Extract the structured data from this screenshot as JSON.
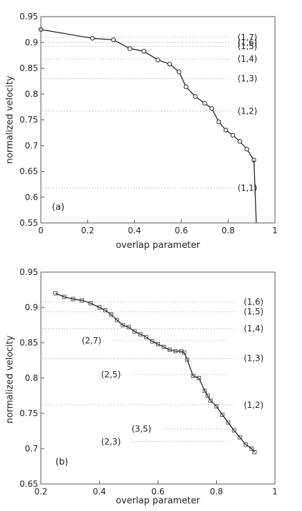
{
  "chart_data": [
    {
      "type": "line",
      "panel_label": "(a)",
      "xlabel": "overlap parameter",
      "ylabel": "normalized velocity",
      "xlim": [
        0,
        1
      ],
      "ylim": [
        0.55,
        0.95
      ],
      "xticks": [
        0,
        0.2,
        0.4,
        0.6,
        0.8,
        1
      ],
      "xtick_labels": [
        "0",
        "0.2",
        "0.4",
        "0.6",
        "0.8",
        "1"
      ],
      "yticks": [
        0.55,
        0.6,
        0.65,
        0.7,
        0.75,
        0.8,
        0.85,
        0.9,
        0.95
      ],
      "ytick_labels": [
        "0.55",
        "0.6",
        "0.65",
        "0.7",
        "0.75",
        "0.8",
        "0.85",
        "0.9",
        "0.95"
      ],
      "series": [
        {
          "marker": "circle",
          "x": [
            0.0,
            0.22,
            0.31,
            0.38,
            0.44,
            0.5,
            0.55,
            0.59,
            0.62,
            0.66,
            0.7,
            0.73,
            0.76,
            0.79,
            0.82,
            0.85,
            0.88,
            0.91
          ],
          "y": [
            0.925,
            0.908,
            0.905,
            0.888,
            0.883,
            0.866,
            0.858,
            0.843,
            0.814,
            0.795,
            0.782,
            0.772,
            0.746,
            0.73,
            0.72,
            0.708,
            0.693,
            0.672
          ]
        },
        {
          "marker": "none",
          "x": [
            0.91,
            0.92
          ],
          "y": [
            0.672,
            0.55
          ]
        }
      ],
      "reference_lines": [
        {
          "label": "(1,7)",
          "y": 0.91
        },
        {
          "label": "(1,6)",
          "y": 0.9
        },
        {
          "label": "(1,5)",
          "y": 0.892
        },
        {
          "label": "(1,4)",
          "y": 0.868
        },
        {
          "label": "(1,3)",
          "y": 0.83
        },
        {
          "label": "(1,2)",
          "y": 0.767
        },
        {
          "label": "(1,1)",
          "y": 0.618
        }
      ]
    },
    {
      "type": "line",
      "panel_label": "(b)",
      "xlabel": "overlap parameter",
      "ylabel": "normalized velocity",
      "xlim": [
        0.2,
        1
      ],
      "ylim": [
        0.65,
        0.95
      ],
      "xticks": [
        0.2,
        0.4,
        0.6,
        0.8,
        1
      ],
      "xtick_labels": [
        "0.2",
        "0.4",
        "0.6",
        "0.8",
        "1"
      ],
      "yticks": [
        0.65,
        0.7,
        0.75,
        0.8,
        0.85,
        0.9,
        0.95
      ],
      "ytick_labels": [
        "0.65",
        "0.7",
        "0.75",
        "0.8",
        "0.85",
        "0.9",
        "0.95"
      ],
      "series": [
        {
          "marker": "square",
          "x": [
            0.25,
            0.28,
            0.31,
            0.34,
            0.37,
            0.4,
            0.42,
            0.44,
            0.46,
            0.48,
            0.5,
            0.52,
            0.54,
            0.56,
            0.58,
            0.6,
            0.62,
            0.64,
            0.66,
            0.68,
            0.69,
            0.7,
            0.72,
            0.74,
            0.76,
            0.77,
            0.78,
            0.8,
            0.82,
            0.84,
            0.86,
            0.88,
            0.9,
            0.92,
            0.93
          ],
          "y": [
            0.92,
            0.915,
            0.912,
            0.91,
            0.906,
            0.9,
            0.896,
            0.89,
            0.882,
            0.875,
            0.872,
            0.866,
            0.862,
            0.858,
            0.852,
            0.848,
            0.844,
            0.84,
            0.838,
            0.838,
            0.836,
            0.826,
            0.803,
            0.8,
            0.782,
            0.775,
            0.768,
            0.76,
            0.748,
            0.737,
            0.726,
            0.716,
            0.706,
            0.7,
            0.695
          ]
        }
      ],
      "reference_lines": [
        {
          "label": "(1,6)",
          "y": 0.908
        },
        {
          "label": "(1,5)",
          "y": 0.894
        },
        {
          "label": "(1,4)",
          "y": 0.87
        },
        {
          "label": "(2,7)",
          "y": 0.853
        },
        {
          "label": "(1,3)",
          "y": 0.828
        },
        {
          "label": "(2,5)",
          "y": 0.805
        },
        {
          "label": "(1,2)",
          "y": 0.762
        },
        {
          "label": "(3,5)",
          "y": 0.728
        },
        {
          "label": "(2,3)",
          "y": 0.71
        }
      ]
    }
  ]
}
